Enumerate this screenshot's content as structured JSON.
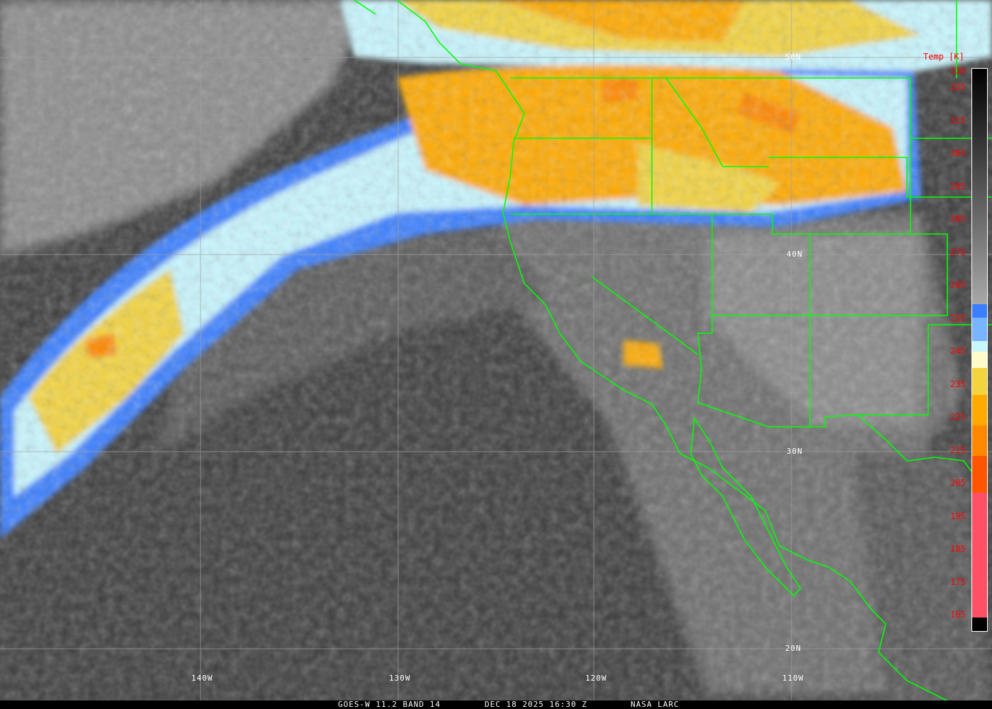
{
  "caption": {
    "satellite": "GOES-W 11.2 BAND 14",
    "datetime": "DEC 18 2025 16:30 Z",
    "source": "NASA LARC"
  },
  "colorbar": {
    "title": "Temp [K]",
    "ticks": [
      "330",
      "325",
      "315",
      "305",
      "295",
      "285",
      "275",
      "265",
      "255",
      "245",
      "235",
      "225",
      "215",
      "205",
      "195",
      "185",
      "175",
      "165"
    ],
    "range_k": [
      165,
      330
    ],
    "stops": [
      {
        "from": 330,
        "to": 260,
        "color": "gradient #000000 to #a8a8a8"
      },
      {
        "from": 260,
        "to": 256,
        "color": "#3a7fff"
      },
      {
        "from": 256,
        "to": 249,
        "color": "#78b4ff"
      },
      {
        "from": 249,
        "to": 246,
        "color": "#c8f6ff"
      },
      {
        "from": 246,
        "to": 241,
        "color": "#fffccc"
      },
      {
        "from": 241,
        "to": 233,
        "color": "#f3d43f"
      },
      {
        "from": 233,
        "to": 224,
        "color": "#ffaa00"
      },
      {
        "from": 224,
        "to": 215,
        "color": "#ff8800"
      },
      {
        "from": 215,
        "to": 204,
        "color": "#ff5500"
      },
      {
        "from": 204,
        "to": 167,
        "color": "#ff5066"
      },
      {
        "from": 167,
        "to": 165,
        "color": "#000000"
      }
    ]
  },
  "grid": {
    "latitudes": [
      "50N",
      "40N",
      "30N",
      "20N"
    ],
    "longitudes": [
      "140W",
      "130W",
      "120W",
      "110W"
    ]
  },
  "colors": {
    "boundaries": "#00ff00",
    "labels": "#ffffff",
    "ticks": "#ff0000",
    "grid": "#a0a0a0"
  }
}
